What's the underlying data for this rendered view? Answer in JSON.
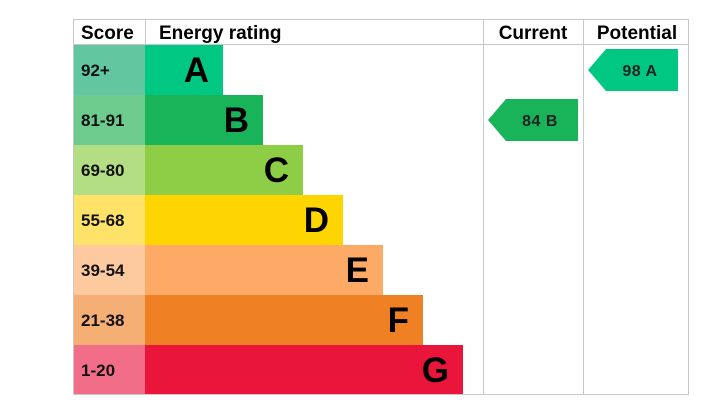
{
  "headers": {
    "score": "Score",
    "rating": "Energy rating",
    "current": "Current",
    "potential": "Potential"
  },
  "chart_data": {
    "type": "bar",
    "bands": [
      {
        "score": "92+",
        "letter": "A",
        "level": 1,
        "color": "#00c781",
        "score_color": "#62c7a0"
      },
      {
        "score": "81-91",
        "letter": "B",
        "level": 2,
        "color": "#19b459",
        "score_color": "#6ccb8d"
      },
      {
        "score": "69-80",
        "letter": "C",
        "level": 3,
        "color": "#8dce46",
        "score_color": "#b4de84"
      },
      {
        "score": "55-68",
        "letter": "D",
        "level": 4,
        "color": "#ffd500",
        "score_color": "#fee26a"
      },
      {
        "score": "39-54",
        "letter": "E",
        "level": 5,
        "color": "#fcaa65",
        "score_color": "#fdcaa0"
      },
      {
        "score": "21-38",
        "letter": "F",
        "level": 6,
        "color": "#ef8023",
        "score_color": "#f5ae74"
      },
      {
        "score": "1-20",
        "letter": "G",
        "level": 7,
        "color": "#e9153b",
        "score_color": "#f26d87"
      }
    ],
    "current": {
      "value": 84,
      "letter": "B",
      "label": "84 B",
      "color": "#19b459"
    },
    "potential": {
      "value": 98,
      "letter": "A",
      "label": "98 A",
      "color": "#00c781"
    }
  }
}
